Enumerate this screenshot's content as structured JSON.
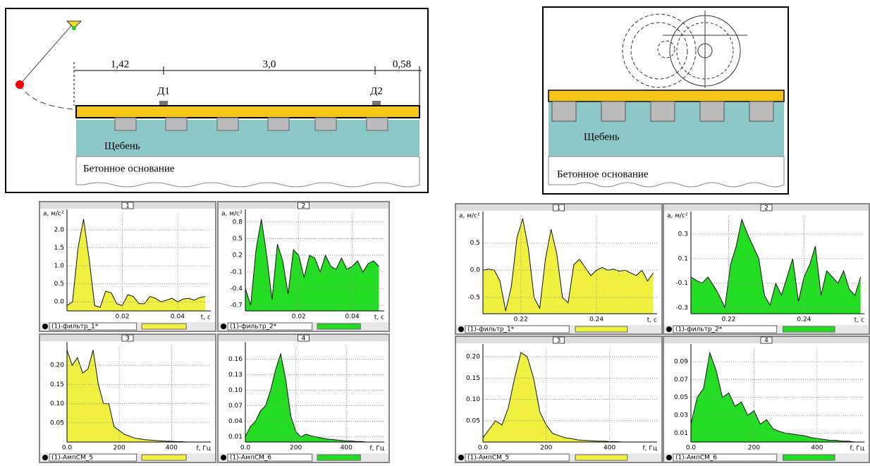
{
  "diagrams": [
    {
      "dimensions": [
        "1,42",
        "3,0",
        "0,58"
      ],
      "sensors": [
        "Д1",
        "Д2"
      ],
      "ballast": "Щебень",
      "base": "Бетонное основание"
    },
    {
      "ballast": "Щебень",
      "base": "Бетонное основание"
    }
  ],
  "chart_data": [
    {
      "type": "area",
      "title": "1",
      "ylabel": "a, м/с²",
      "xlabel": "t, с",
      "x": [
        0,
        0.002,
        0.004,
        0.006,
        0.008,
        0.01,
        0.012,
        0.014,
        0.016,
        0.018,
        0.02,
        0.022,
        0.024,
        0.026,
        0.028,
        0.03,
        0.032,
        0.034,
        0.036,
        0.038,
        0.04,
        0.042,
        0.044,
        0.046,
        0.048,
        0.05
      ],
      "series": [
        {
          "name": "(1)-фильтр_1*",
          "color": "#f0f040",
          "values": [
            -0.1,
            0.0,
            1.5,
            2.3,
            1.2,
            -0.1,
            -0.15,
            0.3,
            0.25,
            -0.05,
            -0.1,
            0.2,
            0.15,
            -0.05,
            -0.05,
            0.15,
            0.1,
            0.0,
            0.05,
            0.1,
            0.0,
            0.08,
            0.1,
            0.05,
            0.12,
            0.15
          ]
        }
      ],
      "xlim": [
        0,
        0.052
      ],
      "ylim": [
        -0.25,
        2.45
      ],
      "xticks": [
        0.02,
        0.04
      ],
      "yticks": [
        {
          "value": 2,
          "label": "2.0"
        },
        1.5,
        {
          "value": 1,
          "label": "1.0"
        },
        0.5,
        {
          "value": 0,
          "label": "0.0"
        }
      ],
      "grid": true
    },
    {
      "type": "area",
      "title": "2",
      "ylabel": "a, м/с²",
      "xlabel": "t, с",
      "x": [
        0,
        0.002,
        0.004,
        0.006,
        0.008,
        0.01,
        0.012,
        0.014,
        0.016,
        0.018,
        0.02,
        0.022,
        0.024,
        0.026,
        0.028,
        0.03,
        0.032,
        0.034,
        0.036,
        0.038,
        0.04,
        0.042,
        0.044,
        0.046,
        0.048,
        0.05
      ],
      "series": [
        {
          "name": "(1)-фильтр_2*",
          "color": "#22dd22",
          "values": [
            -0.4,
            -0.7,
            0.3,
            0.85,
            0.2,
            -0.6,
            0.4,
            0.1,
            -0.5,
            0.3,
            0.2,
            -0.2,
            0.2,
            0.15,
            -0.1,
            0.2,
            0.0,
            -0.05,
            0.15,
            -0.05,
            0.0,
            0.1,
            -0.1,
            0.05,
            0.1,
            0.0
          ]
        }
      ],
      "xlim": [
        0,
        0.052
      ],
      "ylim": [
        -0.8,
        0.95
      ],
      "xticks": [
        0.02,
        0.04
      ],
      "yticks": [
        0.8,
        0.5,
        0.2,
        -0.1,
        -0.4,
        -0.7
      ],
      "grid": true
    },
    {
      "type": "area",
      "title": "3",
      "xlabel": "f, Гц",
      "x": [
        0,
        20,
        40,
        60,
        80,
        100,
        120,
        140,
        160,
        180,
        200,
        220,
        240,
        260,
        280,
        300,
        320,
        340,
        360,
        380,
        400,
        420,
        440,
        460,
        480,
        500,
        520,
        540
      ],
      "series": [
        {
          "name": "(1)-АмпСМ_5",
          "color": "#f0f040",
          "values": [
            0.24,
            0.2,
            0.22,
            0.18,
            0.19,
            0.24,
            0.15,
            0.1,
            0.1,
            0.04,
            0.03,
            0.02,
            0.015,
            0.01,
            0.008,
            0.006,
            0.005,
            0.004,
            0.003,
            0.002,
            0.002,
            0.001,
            0.001,
            0,
            0,
            0,
            0,
            0
          ]
        }
      ],
      "xlim": [
        0,
        550
      ],
      "ylim": [
        0,
        0.25
      ],
      "xticks": [
        {
          "value": 0,
          "label": "0.0"
        },
        200,
        400
      ],
      "yticks": [
        {
          "value": 0.2,
          "label": "0.20"
        },
        0.15,
        {
          "value": 0.1,
          "label": "0.10"
        },
        0.05
      ],
      "grid": true
    },
    {
      "type": "area",
      "title": "4",
      "xlabel": "f, Гц",
      "x": [
        0,
        20,
        40,
        60,
        80,
        100,
        120,
        140,
        160,
        180,
        200,
        220,
        240,
        260,
        280,
        300,
        320,
        340,
        360,
        380,
        400,
        420,
        440,
        460,
        480,
        500,
        520,
        540
      ],
      "series": [
        {
          "name": "(1)-АмпСМ_6",
          "color": "#22dd22",
          "values": [
            0.01,
            0.03,
            0.04,
            0.06,
            0.07,
            0.1,
            0.14,
            0.17,
            0.12,
            0.05,
            0.02,
            0.01,
            0.015,
            0.012,
            0.01,
            0.008,
            0.006,
            0.005,
            0.004,
            0.003,
            0.002,
            0.002,
            0.001,
            0.001,
            0,
            0,
            0,
            0
          ]
        }
      ],
      "xlim": [
        0,
        550
      ],
      "ylim": [
        0,
        0.185
      ],
      "xticks": [
        {
          "value": 0,
          "label": "0.0"
        },
        200,
        400
      ],
      "yticks": [
        0.16,
        0.13,
        {
          "value": 0.1,
          "label": "0.10"
        },
        0.07,
        0.04,
        0.01
      ],
      "grid": true
    },
    {
      "type": "area",
      "title": "1",
      "ylabel": "a, м/с²",
      "xlabel": "t, с",
      "x": [
        0.21,
        0.2115,
        0.213,
        0.2145,
        0.216,
        0.2175,
        0.219,
        0.2205,
        0.222,
        0.2235,
        0.225,
        0.2265,
        0.228,
        0.2295,
        0.231,
        0.2325,
        0.234,
        0.2355,
        0.237,
        0.2385,
        0.24,
        0.2415,
        0.243,
        0.2445,
        0.246,
        0.2475,
        0.249,
        0.2505,
        0.252,
        0.2535,
        0.255
      ],
      "series": [
        {
          "name": "(1)-фильтр_1*",
          "color": "#f0f040",
          "values": [
            0,
            0.02,
            0.0,
            -0.2,
            -0.75,
            -0.3,
            0.6,
            0.95,
            0.4,
            -0.5,
            -0.7,
            0.2,
            0.75,
            0.3,
            -0.5,
            -0.6,
            0.1,
            0.2,
            0.05,
            -0.1,
            0.0,
            0.05,
            0.0,
            0.02,
            -0.02,
            0.0,
            -0.05,
            -0.1,
            0.0,
            -0.2,
            -0.05
          ]
        }
      ],
      "xlim": [
        0.21,
        0.256
      ],
      "ylim": [
        -0.8,
        1.0
      ],
      "xticks": [
        0.22,
        0.24
      ],
      "yticks": [
        0.5,
        {
          "value": 0,
          "label": "0.0"
        },
        -0.5
      ],
      "grid": true
    },
    {
      "type": "area",
      "title": "2",
      "ylabel": "a, м/с²",
      "xlabel": "t, с",
      "x": [
        0.21,
        0.2115,
        0.213,
        0.2145,
        0.216,
        0.2175,
        0.219,
        0.2205,
        0.222,
        0.2235,
        0.225,
        0.2265,
        0.228,
        0.2295,
        0.231,
        0.2325,
        0.234,
        0.2355,
        0.237,
        0.2385,
        0.24,
        0.2415,
        0.243,
        0.2445,
        0.246,
        0.2475,
        0.249,
        0.2505,
        0.252,
        0.2535,
        0.255
      ],
      "series": [
        {
          "name": "(1)-фильтр_2*",
          "color": "#22dd22",
          "values": [
            -0.05,
            -0.08,
            -0.1,
            -0.05,
            -0.12,
            -0.2,
            -0.3,
            0.05,
            0.2,
            0.42,
            0.3,
            0.2,
            0.1,
            -0.2,
            -0.28,
            -0.1,
            -0.2,
            -0.05,
            0.1,
            -0.25,
            -0.05,
            0.05,
            0.2,
            -0.2,
            0.0,
            -0.05,
            -0.1,
            0.0,
            -0.15,
            -0.2,
            -0.05
          ]
        }
      ],
      "xlim": [
        0.21,
        0.256
      ],
      "ylim": [
        -0.35,
        0.45
      ],
      "xticks": [
        0.22,
        0.24
      ],
      "yticks": [
        0.3,
        0.1,
        -0.1,
        -0.3
      ],
      "grid": true
    },
    {
      "type": "area",
      "title": "3",
      "xlabel": "f, Гц",
      "x": [
        0,
        20,
        40,
        60,
        80,
        100,
        120,
        140,
        160,
        180,
        200,
        220,
        240,
        260,
        280,
        300,
        320,
        340,
        360,
        380,
        400,
        420,
        440,
        460,
        480,
        500,
        520,
        540
      ],
      "series": [
        {
          "name": "(1)-АмпСМ_5",
          "color": "#f0f040",
          "values": [
            0.01,
            0.03,
            0.05,
            0.04,
            0.08,
            0.15,
            0.21,
            0.2,
            0.15,
            0.07,
            0.04,
            0.02,
            0.015,
            0.01,
            0.008,
            0.005,
            0.004,
            0.003,
            0.002,
            0.002,
            0.001,
            0.001,
            0,
            0,
            0,
            0,
            0,
            0
          ]
        }
      ],
      "xlim": [
        0,
        550
      ],
      "ylim": [
        0,
        0.22
      ],
      "xticks": [
        {
          "value": 0,
          "label": "0.0"
        },
        200,
        400
      ],
      "yticks": [
        {
          "value": 0.2,
          "label": "0.20"
        },
        0.15,
        {
          "value": 0.1,
          "label": "0.10"
        },
        0.05
      ],
      "grid": true
    },
    {
      "type": "area",
      "title": "4",
      "xlabel": "f, Гц",
      "x": [
        0,
        20,
        40,
        60,
        80,
        100,
        120,
        140,
        160,
        180,
        200,
        220,
        240,
        260,
        280,
        300,
        320,
        340,
        360,
        380,
        400,
        420,
        440,
        460,
        480,
        500,
        520,
        540
      ],
      "series": [
        {
          "name": "(1)-АмпСМ_6",
          "color": "#22dd22",
          "values": [
            0.02,
            0.05,
            0.06,
            0.1,
            0.08,
            0.05,
            0.055,
            0.04,
            0.045,
            0.03,
            0.035,
            0.02,
            0.025,
            0.015,
            0.012,
            0.01,
            0.009,
            0.008,
            0.007,
            0.005,
            0.004,
            0.003,
            0.002,
            0.002,
            0.001,
            0.001,
            0,
            0
          ]
        }
      ],
      "xlim": [
        0,
        550
      ],
      "ylim": [
        0,
        0.105
      ],
      "xticks": [
        {
          "value": 0,
          "label": "0.0"
        },
        200,
        400
      ],
      "yticks": [
        0.09,
        0.07,
        0.05,
        0.03,
        0.01
      ],
      "grid": true
    }
  ]
}
